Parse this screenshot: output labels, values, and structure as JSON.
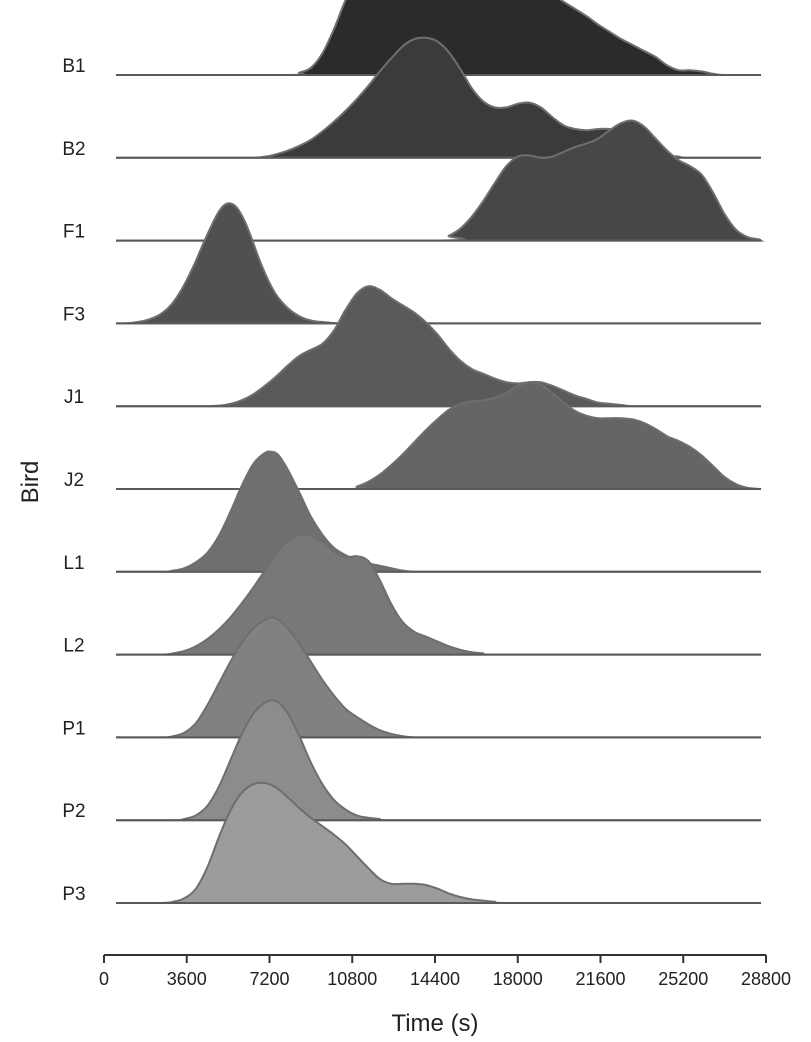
{
  "chart_data": {
    "type": "ridgeline",
    "title": "",
    "xlabel": "Time (s)",
    "ylabel": "Bird",
    "xlim": [
      0,
      28800
    ],
    "x_ticks": [
      0,
      3600,
      7200,
      10800,
      14400,
      18000,
      21600,
      25200,
      28800
    ],
    "x_tick_labels": [
      "0",
      "3600",
      "7200",
      "10800",
      "14400",
      "18000",
      "21600",
      "25200",
      "28800"
    ],
    "grid": false,
    "legend": "none",
    "series": [
      {
        "name": "B1",
        "color": "#2b2b2b",
        "x": [
          0,
          8000,
          8500,
          9000,
          9500,
          10000,
          10500,
          11000,
          11500,
          12000,
          12500,
          13000,
          13500,
          14000,
          14500,
          15000,
          15500,
          16000,
          16500,
          17000,
          17500,
          18000,
          18500,
          19000,
          19500,
          20000,
          20500,
          21000,
          21500,
          22000,
          22500,
          23000,
          23500,
          24000,
          24500,
          25000,
          25500,
          26000,
          26500,
          27000,
          28800
        ],
        "density": [
          0.0,
          0.0,
          0.02,
          0.06,
          0.18,
          0.38,
          0.62,
          0.8,
          0.91,
          0.97,
          1.0,
          0.99,
          0.96,
          0.97,
          0.98,
          0.96,
          0.91,
          0.86,
          0.84,
          0.83,
          0.81,
          0.79,
          0.76,
          0.72,
          0.67,
          0.61,
          0.55,
          0.49,
          0.42,
          0.36,
          0.3,
          0.25,
          0.2,
          0.15,
          0.08,
          0.04,
          0.04,
          0.03,
          0.01,
          0.0,
          0.0
        ]
      },
      {
        "name": "B2",
        "color": "#3b3b3b",
        "x": [
          0,
          6000,
          7000,
          7500,
          8000,
          8500,
          9000,
          9500,
          10000,
          10500,
          11000,
          11500,
          12000,
          12500,
          13000,
          13500,
          14000,
          14500,
          15000,
          15500,
          16000,
          16500,
          17000,
          17500,
          18000,
          18500,
          19000,
          19500,
          20000,
          20500,
          21000,
          21500,
          22000,
          22500,
          23000,
          23500,
          24000,
          24500,
          25000,
          25500,
          28800
        ],
        "density": [
          0.0,
          0.0,
          0.01,
          0.03,
          0.06,
          0.1,
          0.15,
          0.22,
          0.3,
          0.39,
          0.49,
          0.6,
          0.72,
          0.83,
          0.93,
          0.99,
          1.0,
          0.97,
          0.88,
          0.74,
          0.58,
          0.47,
          0.42,
          0.42,
          0.45,
          0.46,
          0.42,
          0.34,
          0.27,
          0.24,
          0.23,
          0.24,
          0.24,
          0.21,
          0.16,
          0.1,
          0.05,
          0.02,
          0.01,
          0.0,
          0.0
        ]
      },
      {
        "name": "F1",
        "color": "#474747",
        "x": [
          0,
          14500,
          15000,
          15500,
          16000,
          16500,
          17000,
          17500,
          18000,
          18500,
          19000,
          19500,
          20000,
          20500,
          21000,
          21500,
          22000,
          22500,
          23000,
          23500,
          24000,
          24500,
          25000,
          25500,
          26000,
          26500,
          27000,
          27500,
          28000,
          28500,
          28800
        ],
        "density": [
          0.0,
          0.0,
          0.04,
          0.1,
          0.2,
          0.33,
          0.48,
          0.62,
          0.7,
          0.71,
          0.69,
          0.7,
          0.74,
          0.78,
          0.81,
          0.85,
          0.92,
          0.98,
          1.0,
          0.95,
          0.85,
          0.75,
          0.67,
          0.62,
          0.55,
          0.4,
          0.22,
          0.09,
          0.03,
          0.01,
          0.0
        ]
      },
      {
        "name": "F3",
        "color": "#505050",
        "x": [
          0,
          900,
          1400,
          1900,
          2400,
          2900,
          3400,
          3900,
          4400,
          4900,
          5200,
          5500,
          5800,
          6100,
          6400,
          6700,
          7000,
          7300,
          7600,
          8100,
          8600,
          9100,
          9600,
          10200,
          10800,
          28800
        ],
        "density": [
          0.0,
          0.0,
          0.01,
          0.03,
          0.07,
          0.15,
          0.29,
          0.48,
          0.7,
          0.9,
          0.98,
          1.0,
          0.96,
          0.86,
          0.72,
          0.56,
          0.42,
          0.3,
          0.21,
          0.11,
          0.05,
          0.02,
          0.01,
          0.0,
          0.0,
          0.0
        ]
      },
      {
        "name": "J1",
        "color": "#5a5a5a",
        "x": [
          0,
          4500,
          5500,
          6000,
          6500,
          7000,
          7500,
          8000,
          8500,
          9000,
          9500,
          10000,
          10500,
          11000,
          11500,
          12000,
          12500,
          13000,
          13500,
          14000,
          14500,
          15000,
          15500,
          16000,
          16500,
          17000,
          17500,
          18000,
          18500,
          19000,
          19500,
          20000,
          20500,
          21000,
          21500,
          22000,
          22500,
          23000,
          24000,
          28800
        ],
        "density": [
          0.0,
          0.0,
          0.02,
          0.05,
          0.1,
          0.17,
          0.25,
          0.34,
          0.42,
          0.47,
          0.52,
          0.63,
          0.8,
          0.94,
          1.0,
          0.97,
          0.9,
          0.84,
          0.78,
          0.7,
          0.6,
          0.48,
          0.38,
          0.31,
          0.27,
          0.23,
          0.2,
          0.19,
          0.2,
          0.2,
          0.17,
          0.13,
          0.09,
          0.06,
          0.03,
          0.02,
          0.01,
          0.0,
          0.0,
          0.0
        ]
      },
      {
        "name": "J2",
        "color": "#656565",
        "x": [
          0,
          10500,
          11000,
          11500,
          12000,
          12500,
          13000,
          13500,
          14000,
          14500,
          15000,
          15500,
          16000,
          16500,
          17000,
          17500,
          18000,
          18500,
          19000,
          19500,
          20000,
          20500,
          21000,
          21500,
          22000,
          22500,
          23000,
          23500,
          24000,
          24500,
          25000,
          25500,
          26000,
          26500,
          27000,
          27500,
          28000,
          28800
        ],
        "density": [
          0.0,
          0.0,
          0.02,
          0.06,
          0.12,
          0.2,
          0.29,
          0.39,
          0.49,
          0.58,
          0.66,
          0.71,
          0.73,
          0.74,
          0.76,
          0.8,
          0.86,
          0.89,
          0.87,
          0.8,
          0.72,
          0.65,
          0.61,
          0.59,
          0.59,
          0.59,
          0.58,
          0.55,
          0.5,
          0.44,
          0.4,
          0.35,
          0.28,
          0.19,
          0.1,
          0.04,
          0.01,
          0.0
        ]
      },
      {
        "name": "L1",
        "color": "#6f6f6f",
        "x": [
          0,
          2500,
          3000,
          3500,
          4000,
          4500,
          5000,
          5500,
          6000,
          6500,
          7000,
          7300,
          7600,
          8000,
          8500,
          9000,
          9500,
          10000,
          10500,
          11000,
          11500,
          12000,
          12500,
          13000,
          13500,
          14000,
          28800
        ],
        "density": [
          0.0,
          0.0,
          0.01,
          0.03,
          0.08,
          0.16,
          0.3,
          0.5,
          0.72,
          0.9,
          0.99,
          1.0,
          0.97,
          0.85,
          0.66,
          0.46,
          0.31,
          0.2,
          0.14,
          0.1,
          0.07,
          0.05,
          0.03,
          0.01,
          0.0,
          0.0,
          0.0
        ]
      },
      {
        "name": "L2",
        "color": "#787878",
        "x": [
          0,
          2500,
          3000,
          3500,
          4000,
          4500,
          5000,
          5500,
          6000,
          6500,
          7000,
          7500,
          8000,
          8500,
          9000,
          9500,
          10000,
          10500,
          11000,
          11500,
          12000,
          12500,
          13000,
          13500,
          14000,
          14500,
          15000,
          15500,
          16000,
          16500,
          17000,
          28800
        ],
        "density": [
          0.0,
          0.0,
          0.01,
          0.03,
          0.07,
          0.13,
          0.21,
          0.31,
          0.43,
          0.56,
          0.7,
          0.84,
          0.95,
          1.0,
          0.99,
          0.94,
          0.86,
          0.81,
          0.82,
          0.78,
          0.62,
          0.42,
          0.27,
          0.19,
          0.15,
          0.11,
          0.07,
          0.04,
          0.02,
          0.01,
          0.0,
          0.0
        ]
      },
      {
        "name": "P1",
        "color": "#818181",
        "x": [
          0,
          2500,
          3000,
          3500,
          4000,
          4500,
          5000,
          5500,
          6000,
          6500,
          7000,
          7300,
          7600,
          8000,
          8500,
          9000,
          9500,
          10000,
          10500,
          11000,
          11500,
          12000,
          12500,
          13000,
          13500,
          14000,
          28800
        ],
        "density": [
          0.0,
          0.0,
          0.01,
          0.04,
          0.12,
          0.27,
          0.45,
          0.63,
          0.79,
          0.91,
          0.98,
          1.0,
          0.98,
          0.91,
          0.78,
          0.63,
          0.48,
          0.35,
          0.24,
          0.17,
          0.11,
          0.06,
          0.03,
          0.01,
          0.0,
          0.0,
          0.0
        ]
      },
      {
        "name": "P2",
        "color": "#8c8c8c",
        "x": [
          0,
          3000,
          3500,
          4000,
          4500,
          5000,
          5500,
          6000,
          6500,
          7000,
          7300,
          7600,
          8000,
          8500,
          9000,
          9500,
          10000,
          10500,
          11000,
          11500,
          12000,
          12500,
          28800
        ],
        "density": [
          0.0,
          0.0,
          0.01,
          0.04,
          0.12,
          0.28,
          0.5,
          0.72,
          0.89,
          0.98,
          1.0,
          0.98,
          0.89,
          0.7,
          0.48,
          0.3,
          0.17,
          0.09,
          0.04,
          0.02,
          0.01,
          0.0,
          0.0
        ]
      },
      {
        "name": "P3",
        "color": "#9c9c9c",
        "x": [
          0,
          2500,
          3000,
          3500,
          4000,
          4500,
          5000,
          5500,
          6000,
          6500,
          7000,
          7500,
          8000,
          8500,
          9000,
          9500,
          10000,
          10500,
          11000,
          11500,
          12000,
          12500,
          13000,
          13500,
          14000,
          14500,
          15000,
          15500,
          16000,
          16500,
          17000,
          18000,
          28800
        ],
        "density": [
          0.0,
          0.0,
          0.01,
          0.04,
          0.12,
          0.3,
          0.55,
          0.77,
          0.92,
          0.99,
          1.0,
          0.96,
          0.88,
          0.79,
          0.71,
          0.64,
          0.57,
          0.49,
          0.39,
          0.29,
          0.2,
          0.16,
          0.16,
          0.16,
          0.15,
          0.12,
          0.08,
          0.05,
          0.03,
          0.02,
          0.01,
          0.0,
          0.0
        ]
      }
    ]
  }
}
